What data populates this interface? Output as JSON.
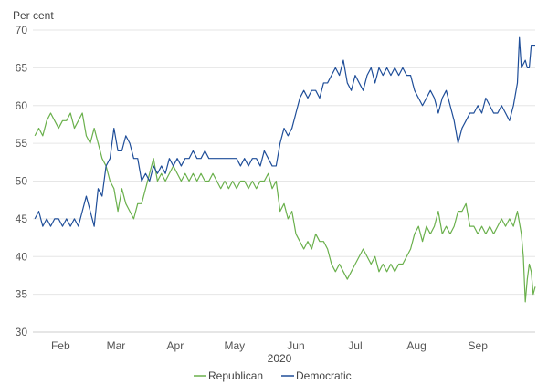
{
  "chart_data": {
    "type": "line",
    "title": "",
    "ylabel": "Per cent",
    "xlabel": "2020",
    "ylim": [
      30,
      70
    ],
    "yticks": [
      30,
      35,
      40,
      45,
      50,
      55,
      60,
      65,
      70
    ],
    "x_range": [
      "2020-01-20",
      "2020-09-30"
    ],
    "x_ticks": [
      {
        "label": "Feb",
        "date": "2020-02-03"
      },
      {
        "label": "Mar",
        "date": "2020-03-02"
      },
      {
        "label": "Apr",
        "date": "2020-04-01"
      },
      {
        "label": "May",
        "date": "2020-05-01"
      },
      {
        "label": "Jun",
        "date": "2020-06-01"
      },
      {
        "label": "Jul",
        "date": "2020-07-01"
      },
      {
        "label": "Aug",
        "date": "2020-08-01"
      },
      {
        "label": "Sep",
        "date": "2020-09-01"
      }
    ],
    "grid": true,
    "legend_position": "bottom",
    "series": [
      {
        "name": "Republican",
        "color": "#6ab04c",
        "points": [
          [
            "2020-01-21",
            56
          ],
          [
            "2020-01-23",
            57
          ],
          [
            "2020-01-25",
            56
          ],
          [
            "2020-01-27",
            58
          ],
          [
            "2020-01-29",
            59
          ],
          [
            "2020-01-31",
            58
          ],
          [
            "2020-02-02",
            57
          ],
          [
            "2020-02-04",
            58
          ],
          [
            "2020-02-06",
            58
          ],
          [
            "2020-02-08",
            59
          ],
          [
            "2020-02-10",
            57
          ],
          [
            "2020-02-12",
            58
          ],
          [
            "2020-02-14",
            59
          ],
          [
            "2020-02-16",
            56
          ],
          [
            "2020-02-18",
            55
          ],
          [
            "2020-02-20",
            57
          ],
          [
            "2020-02-22",
            55
          ],
          [
            "2020-02-24",
            53
          ],
          [
            "2020-02-26",
            52
          ],
          [
            "2020-02-28",
            50
          ],
          [
            "2020-03-01",
            49
          ],
          [
            "2020-03-03",
            46
          ],
          [
            "2020-03-05",
            49
          ],
          [
            "2020-03-07",
            47
          ],
          [
            "2020-03-09",
            46
          ],
          [
            "2020-03-11",
            45
          ],
          [
            "2020-03-13",
            47
          ],
          [
            "2020-03-15",
            47
          ],
          [
            "2020-03-17",
            49
          ],
          [
            "2020-03-19",
            51
          ],
          [
            "2020-03-21",
            53
          ],
          [
            "2020-03-23",
            50
          ],
          [
            "2020-03-25",
            51
          ],
          [
            "2020-03-27",
            50
          ],
          [
            "2020-03-29",
            51
          ],
          [
            "2020-03-31",
            52
          ],
          [
            "2020-04-02",
            51
          ],
          [
            "2020-04-04",
            50
          ],
          [
            "2020-04-06",
            51
          ],
          [
            "2020-04-08",
            50
          ],
          [
            "2020-04-10",
            51
          ],
          [
            "2020-04-12",
            50
          ],
          [
            "2020-04-14",
            51
          ],
          [
            "2020-04-16",
            50
          ],
          [
            "2020-04-18",
            50
          ],
          [
            "2020-04-20",
            51
          ],
          [
            "2020-04-22",
            50
          ],
          [
            "2020-04-24",
            49
          ],
          [
            "2020-04-26",
            50
          ],
          [
            "2020-04-28",
            49
          ],
          [
            "2020-04-30",
            50
          ],
          [
            "2020-05-02",
            49
          ],
          [
            "2020-05-04",
            50
          ],
          [
            "2020-05-06",
            50
          ],
          [
            "2020-05-08",
            49
          ],
          [
            "2020-05-10",
            50
          ],
          [
            "2020-05-12",
            49
          ],
          [
            "2020-05-14",
            50
          ],
          [
            "2020-05-16",
            50
          ],
          [
            "2020-05-18",
            51
          ],
          [
            "2020-05-20",
            49
          ],
          [
            "2020-05-22",
            50
          ],
          [
            "2020-05-24",
            46
          ],
          [
            "2020-05-26",
            47
          ],
          [
            "2020-05-28",
            45
          ],
          [
            "2020-05-30",
            46
          ],
          [
            "2020-06-01",
            43
          ],
          [
            "2020-06-03",
            42
          ],
          [
            "2020-06-05",
            41
          ],
          [
            "2020-06-07",
            42
          ],
          [
            "2020-06-09",
            41
          ],
          [
            "2020-06-11",
            43
          ],
          [
            "2020-06-13",
            42
          ],
          [
            "2020-06-15",
            42
          ],
          [
            "2020-06-17",
            41
          ],
          [
            "2020-06-19",
            39
          ],
          [
            "2020-06-21",
            38
          ],
          [
            "2020-06-23",
            39
          ],
          [
            "2020-06-25",
            38
          ],
          [
            "2020-06-27",
            37
          ],
          [
            "2020-06-29",
            38
          ],
          [
            "2020-07-01",
            39
          ],
          [
            "2020-07-03",
            40
          ],
          [
            "2020-07-05",
            41
          ],
          [
            "2020-07-07",
            40
          ],
          [
            "2020-07-09",
            39
          ],
          [
            "2020-07-11",
            40
          ],
          [
            "2020-07-13",
            38
          ],
          [
            "2020-07-15",
            39
          ],
          [
            "2020-07-17",
            38
          ],
          [
            "2020-07-19",
            39
          ],
          [
            "2020-07-21",
            38
          ],
          [
            "2020-07-23",
            39
          ],
          [
            "2020-07-25",
            39
          ],
          [
            "2020-07-27",
            40
          ],
          [
            "2020-07-29",
            41
          ],
          [
            "2020-07-31",
            43
          ],
          [
            "2020-08-02",
            44
          ],
          [
            "2020-08-04",
            42
          ],
          [
            "2020-08-06",
            44
          ],
          [
            "2020-08-08",
            43
          ],
          [
            "2020-08-10",
            44
          ],
          [
            "2020-08-12",
            46
          ],
          [
            "2020-08-14",
            43
          ],
          [
            "2020-08-16",
            44
          ],
          [
            "2020-08-18",
            43
          ],
          [
            "2020-08-20",
            44
          ],
          [
            "2020-08-22",
            46
          ],
          [
            "2020-08-24",
            46
          ],
          [
            "2020-08-26",
            47
          ],
          [
            "2020-08-28",
            44
          ],
          [
            "2020-08-30",
            44
          ],
          [
            "2020-09-01",
            43
          ],
          [
            "2020-09-03",
            44
          ],
          [
            "2020-09-05",
            43
          ],
          [
            "2020-09-07",
            44
          ],
          [
            "2020-09-09",
            43
          ],
          [
            "2020-09-11",
            44
          ],
          [
            "2020-09-13",
            45
          ],
          [
            "2020-09-15",
            44
          ],
          [
            "2020-09-17",
            45
          ],
          [
            "2020-09-19",
            44
          ],
          [
            "2020-09-21",
            46
          ],
          [
            "2020-09-23",
            43
          ],
          [
            "2020-09-24",
            40
          ],
          [
            "2020-09-25",
            34
          ],
          [
            "2020-09-26",
            37
          ],
          [
            "2020-09-27",
            39
          ],
          [
            "2020-09-28",
            38
          ],
          [
            "2020-09-29",
            35
          ],
          [
            "2020-09-30",
            36
          ]
        ]
      },
      {
        "name": "Democratic",
        "color": "#1f4e99",
        "points": [
          [
            "2020-01-21",
            45
          ],
          [
            "2020-01-23",
            46
          ],
          [
            "2020-01-25",
            44
          ],
          [
            "2020-01-27",
            45
          ],
          [
            "2020-01-29",
            44
          ],
          [
            "2020-01-31",
            45
          ],
          [
            "2020-02-02",
            45
          ],
          [
            "2020-02-04",
            44
          ],
          [
            "2020-02-06",
            45
          ],
          [
            "2020-02-08",
            44
          ],
          [
            "2020-02-10",
            45
          ],
          [
            "2020-02-12",
            44
          ],
          [
            "2020-02-14",
            46
          ],
          [
            "2020-02-16",
            48
          ],
          [
            "2020-02-18",
            46
          ],
          [
            "2020-02-20",
            44
          ],
          [
            "2020-02-22",
            49
          ],
          [
            "2020-02-24",
            48
          ],
          [
            "2020-02-26",
            52
          ],
          [
            "2020-02-28",
            53
          ],
          [
            "2020-03-01",
            57
          ],
          [
            "2020-03-03",
            54
          ],
          [
            "2020-03-05",
            54
          ],
          [
            "2020-03-07",
            56
          ],
          [
            "2020-03-09",
            55
          ],
          [
            "2020-03-11",
            53
          ],
          [
            "2020-03-13",
            53
          ],
          [
            "2020-03-15",
            50
          ],
          [
            "2020-03-17",
            51
          ],
          [
            "2020-03-19",
            50
          ],
          [
            "2020-03-21",
            52
          ],
          [
            "2020-03-23",
            51
          ],
          [
            "2020-03-25",
            52
          ],
          [
            "2020-03-27",
            51
          ],
          [
            "2020-03-29",
            53
          ],
          [
            "2020-03-31",
            52
          ],
          [
            "2020-04-02",
            53
          ],
          [
            "2020-04-04",
            52
          ],
          [
            "2020-04-06",
            53
          ],
          [
            "2020-04-08",
            53
          ],
          [
            "2020-04-10",
            54
          ],
          [
            "2020-04-12",
            53
          ],
          [
            "2020-04-14",
            53
          ],
          [
            "2020-04-16",
            54
          ],
          [
            "2020-04-18",
            53
          ],
          [
            "2020-04-20",
            53
          ],
          [
            "2020-04-22",
            53
          ],
          [
            "2020-04-24",
            53
          ],
          [
            "2020-04-26",
            53
          ],
          [
            "2020-04-28",
            53
          ],
          [
            "2020-04-30",
            53
          ],
          [
            "2020-05-02",
            53
          ],
          [
            "2020-05-04",
            52
          ],
          [
            "2020-05-06",
            53
          ],
          [
            "2020-05-08",
            52
          ],
          [
            "2020-05-10",
            53
          ],
          [
            "2020-05-12",
            53
          ],
          [
            "2020-05-14",
            52
          ],
          [
            "2020-05-16",
            54
          ],
          [
            "2020-05-18",
            53
          ],
          [
            "2020-05-20",
            52
          ],
          [
            "2020-05-22",
            52
          ],
          [
            "2020-05-24",
            55
          ],
          [
            "2020-05-26",
            57
          ],
          [
            "2020-05-28",
            56
          ],
          [
            "2020-05-30",
            57
          ],
          [
            "2020-06-01",
            59
          ],
          [
            "2020-06-03",
            61
          ],
          [
            "2020-06-05",
            62
          ],
          [
            "2020-06-07",
            61
          ],
          [
            "2020-06-09",
            62
          ],
          [
            "2020-06-11",
            62
          ],
          [
            "2020-06-13",
            61
          ],
          [
            "2020-06-15",
            63
          ],
          [
            "2020-06-17",
            63
          ],
          [
            "2020-06-19",
            64
          ],
          [
            "2020-06-21",
            65
          ],
          [
            "2020-06-23",
            64
          ],
          [
            "2020-06-25",
            66
          ],
          [
            "2020-06-27",
            63
          ],
          [
            "2020-06-29",
            62
          ],
          [
            "2020-07-01",
            64
          ],
          [
            "2020-07-03",
            63
          ],
          [
            "2020-07-05",
            62
          ],
          [
            "2020-07-07",
            64
          ],
          [
            "2020-07-09",
            65
          ],
          [
            "2020-07-11",
            63
          ],
          [
            "2020-07-13",
            65
          ],
          [
            "2020-07-15",
            64
          ],
          [
            "2020-07-17",
            65
          ],
          [
            "2020-07-19",
            64
          ],
          [
            "2020-07-21",
            65
          ],
          [
            "2020-07-23",
            64
          ],
          [
            "2020-07-25",
            65
          ],
          [
            "2020-07-27",
            64
          ],
          [
            "2020-07-29",
            64
          ],
          [
            "2020-07-31",
            62
          ],
          [
            "2020-08-02",
            61
          ],
          [
            "2020-08-04",
            60
          ],
          [
            "2020-08-06",
            61
          ],
          [
            "2020-08-08",
            62
          ],
          [
            "2020-08-10",
            61
          ],
          [
            "2020-08-12",
            59
          ],
          [
            "2020-08-14",
            61
          ],
          [
            "2020-08-16",
            62
          ],
          [
            "2020-08-18",
            60
          ],
          [
            "2020-08-20",
            58
          ],
          [
            "2020-08-22",
            55
          ],
          [
            "2020-08-24",
            57
          ],
          [
            "2020-08-26",
            58
          ],
          [
            "2020-08-28",
            59
          ],
          [
            "2020-08-30",
            59
          ],
          [
            "2020-09-01",
            60
          ],
          [
            "2020-09-03",
            59
          ],
          [
            "2020-09-05",
            61
          ],
          [
            "2020-09-07",
            60
          ],
          [
            "2020-09-09",
            59
          ],
          [
            "2020-09-11",
            59
          ],
          [
            "2020-09-13",
            60
          ],
          [
            "2020-09-15",
            59
          ],
          [
            "2020-09-17",
            58
          ],
          [
            "2020-09-19",
            60
          ],
          [
            "2020-09-21",
            63
          ],
          [
            "2020-09-22",
            69
          ],
          [
            "2020-09-23",
            65
          ],
          [
            "2020-09-25",
            66
          ],
          [
            "2020-09-26",
            65
          ],
          [
            "2020-09-27",
            65
          ],
          [
            "2020-09-28",
            68
          ],
          [
            "2020-09-30",
            68
          ]
        ]
      }
    ]
  }
}
